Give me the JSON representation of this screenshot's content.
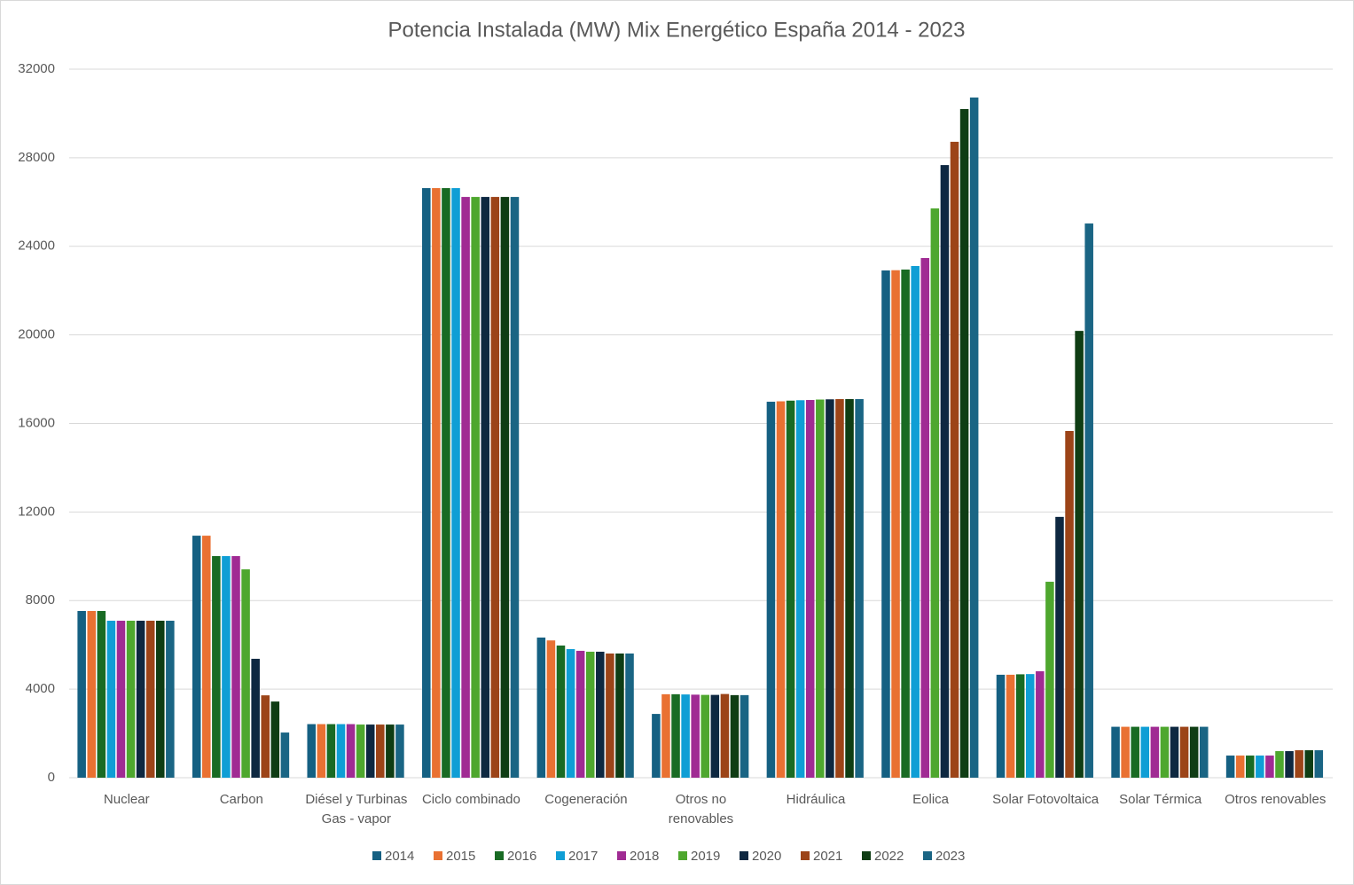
{
  "chart_data": {
    "type": "bar",
    "title": "Potencia Instalada (MW)   Mix Energético España 2014 - 2023",
    "categories": [
      "Nuclear",
      "Carbon",
      "Diésel y Turbinas Gas - vapor",
      "Ciclo combinado",
      "Cogeneración",
      "Otros no renovables",
      "Hidráulica",
      "Eolica",
      "Solar Fotovoltaica",
      "Solar Térmica",
      "Otros renovables"
    ],
    "series": [
      {
        "name": "2014",
        "color": "#156082",
        "values": [
          7530,
          10930,
          2420,
          26630,
          6330,
          2880,
          16980,
          22910,
          4650,
          2300,
          1000
        ]
      },
      {
        "name": "2015",
        "color": "#e97132",
        "values": [
          7530,
          10930,
          2420,
          26630,
          6200,
          3770,
          17000,
          22920,
          4650,
          2300,
          1000
        ]
      },
      {
        "name": "2016",
        "color": "#196b24",
        "values": [
          7530,
          10010,
          2420,
          26630,
          5970,
          3770,
          17030,
          22950,
          4670,
          2300,
          1000
        ]
      },
      {
        "name": "2017",
        "color": "#0f9ed5",
        "values": [
          7090,
          10010,
          2420,
          26630,
          5810,
          3760,
          17050,
          23110,
          4680,
          2300,
          1000
        ]
      },
      {
        "name": "2018",
        "color": "#a02b93",
        "values": [
          7090,
          10010,
          2420,
          26230,
          5730,
          3750,
          17060,
          23470,
          4810,
          2300,
          1000
        ]
      },
      {
        "name": "2019",
        "color": "#4ea72e",
        "values": [
          7090,
          9410,
          2400,
          26230,
          5690,
          3740,
          17080,
          25710,
          8850,
          2300,
          1200
        ]
      },
      {
        "name": "2020",
        "color": "#0e2841",
        "values": [
          7090,
          5370,
          2400,
          26230,
          5690,
          3740,
          17090,
          27670,
          11780,
          2300,
          1200
        ]
      },
      {
        "name": "2021",
        "color": "#9c4418",
        "values": [
          7090,
          3720,
          2400,
          26230,
          5610,
          3780,
          17100,
          28720,
          15660,
          2300,
          1240
        ]
      },
      {
        "name": "2022",
        "color": "#0f3d14",
        "values": [
          7090,
          3440,
          2400,
          26230,
          5610,
          3730,
          17100,
          30200,
          20180,
          2300,
          1240
        ]
      },
      {
        "name": "2023",
        "color": "#1a6584",
        "values": [
          7090,
          2040,
          2400,
          26230,
          5610,
          3730,
          17100,
          30720,
          25030,
          2300,
          1240
        ]
      }
    ],
    "ylim": [
      0,
      32000
    ],
    "yticks": [
      0,
      4000,
      8000,
      12000,
      16000,
      20000,
      24000,
      28000,
      32000
    ],
    "grid": true,
    "legend": "bottom"
  }
}
